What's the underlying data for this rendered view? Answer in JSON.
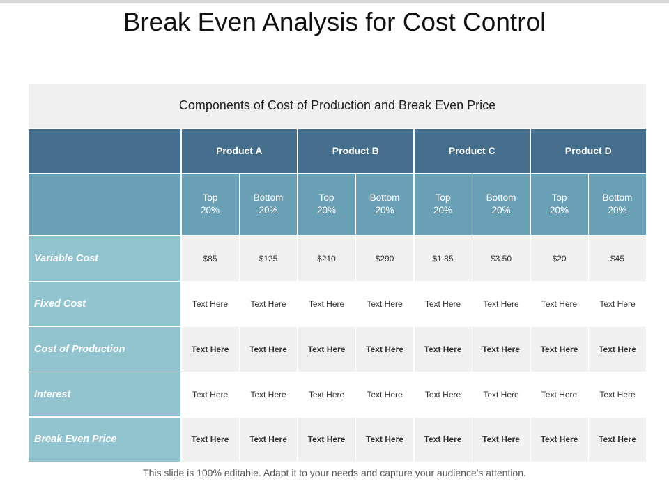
{
  "slide": {
    "title": "Break Even Analysis for Cost Control",
    "footer": "This slide is 100% editable. Adapt it to your needs and capture your audience's attention."
  },
  "table": {
    "caption": "Components  of Cost of Production and Break Even Price",
    "products": [
      "Product A",
      "Product B",
      "Product C",
      "Product D"
    ],
    "subheaders": [
      [
        "Top",
        "20%"
      ],
      [
        "Bottom",
        "20%"
      ],
      [
        "Top",
        "20%"
      ],
      [
        "Bottom",
        "20%"
      ],
      [
        "Top",
        "20%"
      ],
      [
        "Bottom",
        "20%"
      ],
      [
        "Top",
        "20%"
      ],
      [
        "Bottom",
        "20%"
      ]
    ],
    "rows": [
      {
        "label": "Variable Cost",
        "values": [
          "$85",
          "$125",
          "$210",
          "$290",
          "$1.85",
          "$3.50",
          "$20",
          "$45"
        ]
      },
      {
        "label": "Fixed Cost",
        "values": [
          "Text Here",
          "Text Here",
          "Text Here",
          "Text Here",
          "Text Here",
          "Text Here",
          "Text Here",
          "Text Here"
        ]
      },
      {
        "label": "Cost of Production",
        "values": [
          "Text Here",
          "Text Here",
          "Text Here",
          "Text Here",
          "Text Here",
          "Text Here",
          "Text Here",
          "Text Here"
        ]
      },
      {
        "label": "Interest",
        "values": [
          "Text Here",
          "Text Here",
          "Text Here",
          "Text Here",
          "Text Here",
          "Text Here",
          "Text Here",
          "Text Here"
        ]
      },
      {
        "label": "Break Even Price",
        "values": [
          "Text Here",
          "Text Here",
          "Text Here",
          "Text Here",
          "Text Here",
          "Text Here",
          "Text Here",
          "Text Here"
        ]
      }
    ]
  },
  "colors": {
    "product_header": "#446e8c",
    "sub_header": "#6aa0b5",
    "row_label": "#92c4cf",
    "caption_bg": "#f0f0f0"
  }
}
